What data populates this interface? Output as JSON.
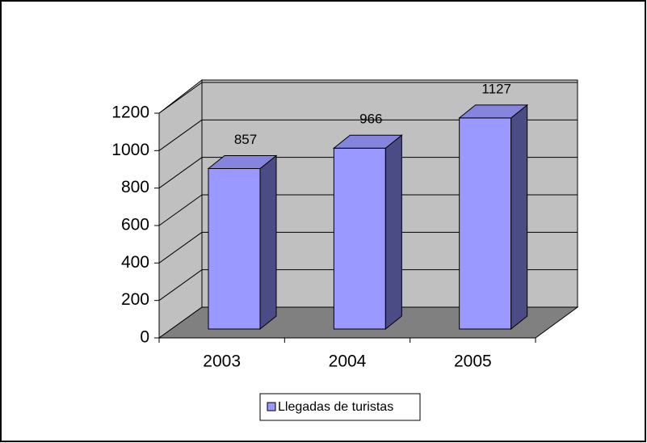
{
  "chart_data": {
    "type": "bar3d",
    "categories": [
      "2003",
      "2004",
      "2005"
    ],
    "series": [
      {
        "name": "Llegadas de turistas",
        "color": "#9999ff",
        "values": [
          857,
          966,
          1127
        ]
      }
    ],
    "ylim": [
      0,
      1200
    ],
    "yticks": [
      0,
      200,
      400,
      600,
      800,
      1000,
      1200
    ],
    "grid": true,
    "legend": "bottom"
  }
}
